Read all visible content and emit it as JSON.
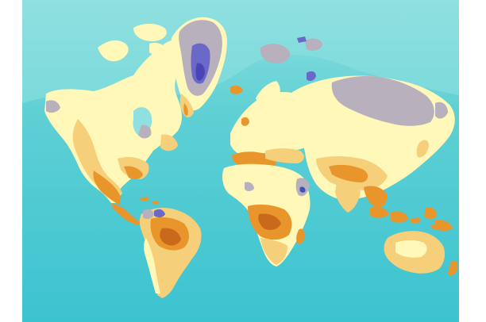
{
  "map": {
    "projection": "mercator",
    "palette": {
      "ocean": "#5fd0d4",
      "ocean_light": "#8fe0e0",
      "ocean_deep": "#3cc3d0",
      "land_low": "#fff8b8",
      "land_mid": "#f6cf7a",
      "land_high": "#e8962c",
      "land_peak": "#c9691c",
      "ice": "#b8b0bc",
      "ice_core": "#6a68c8",
      "ice_deep": "#4a44b4",
      "border_blue": "#3f52b8"
    },
    "legend": []
  }
}
